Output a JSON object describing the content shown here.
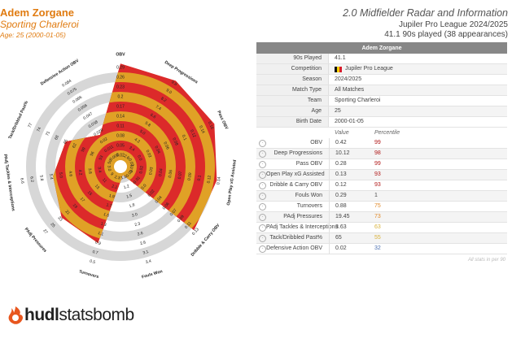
{
  "player": {
    "name": "Adem Zorgane",
    "team": "Sporting Charleroi",
    "age_line": "Age: 25 (2000-01-05)"
  },
  "header": {
    "title": "2.0 Midfielder Radar and Information",
    "league_season": "Jupiler Pro League 2024/2025",
    "minutes": "41.1 90s played (38 appearances)"
  },
  "colors": {
    "radar_orange": "#e0a126",
    "radar_red": "#dc2a2a",
    "ring_grey": "#d7d7d7",
    "accent_orange": "#e07b10",
    "pct_dark_red": "#b01818",
    "pct_orange": "#e0892a",
    "pct_yellow": "#d9b23a",
    "pct_blue": "#4a6fb0"
  },
  "table": {
    "header": "Adem Zorgane",
    "info": [
      {
        "label": "90s Played",
        "value": "41.1"
      },
      {
        "label": "Competition",
        "value": "Jupiler Pro League",
        "flag": true
      },
      {
        "label": "Season",
        "value": "2024/2025"
      },
      {
        "label": "Match Type",
        "value": "All Matches"
      },
      {
        "label": "Team",
        "value": "Sporting Charleroi"
      },
      {
        "label": "Age",
        "value": "25"
      },
      {
        "label": "Birth Date",
        "value": "2000-01-05"
      }
    ],
    "col_value": "Value",
    "col_percentile": "Percentile",
    "stats": [
      {
        "label": "OBV",
        "value": "0.42",
        "pct": "99",
        "color": "#b01818",
        "icon": "obv-icon"
      },
      {
        "label": "Deep Progressions",
        "value": "10.12",
        "pct": "98",
        "color": "#b01818",
        "icon": "deep-progressions-icon"
      },
      {
        "label": "Pass OBV",
        "value": "0.28",
        "pct": "99",
        "color": "#b01818",
        "icon": "pass-icon"
      },
      {
        "label": "Open Play xG Assisted",
        "value": "0.13",
        "pct": "93",
        "color": "#b01818",
        "icon": "xg-assisted-icon"
      },
      {
        "label": "Dribble & Carry OBV",
        "value": "0.12",
        "pct": "93",
        "color": "#b01818",
        "icon": "dribble-icon"
      },
      {
        "label": "Fouls Won",
        "value": "0.29",
        "pct": "1",
        "color": "#4a4a4a",
        "icon": "foul-icon"
      },
      {
        "label": "Turnovers",
        "value": "0.88",
        "pct": "75",
        "color": "#e0892a",
        "icon": "turnover-icon"
      },
      {
        "label": "PAdj Pressures",
        "value": "19.45",
        "pct": "73",
        "color": "#e0892a",
        "icon": "pressure-icon"
      },
      {
        "label": "PAdj Tackles & Interceptions",
        "value": "3.63",
        "pct": "63",
        "color": "#d9b23a",
        "icon": "tackle-icon"
      },
      {
        "label": "Tack/Dribbled Past%",
        "value": "65",
        "pct": "55",
        "color": "#d9b23a",
        "icon": "tackle-dribbled-icon"
      },
      {
        "label": "Defensive Action OBV",
        "value": "0.02",
        "pct": "32",
        "color": "#4a6fb0",
        "icon": "defensive-obv-icon"
      }
    ],
    "footnote": "All stats in per 90"
  },
  "radar": {
    "axes": [
      {
        "name": "OBV",
        "pct": 99,
        "ticks": [
          "0.29",
          "0.26",
          "0.23",
          "0.2",
          "0.17",
          "0.14",
          "0.11",
          "0.08",
          "0.05",
          "0.02"
        ]
      },
      {
        "name": "Deep Progressions",
        "pct": 98,
        "ticks": [
          "9.8",
          "9.0",
          "8.2",
          "7.4",
          "6.6",
          "5.8",
          "5.0",
          "4.2",
          "3.4",
          "2.6"
        ]
      },
      {
        "name": "Pass OBV",
        "pct": 99,
        "ticks": [
          "0.16",
          "0.14",
          "0.12",
          "0.1",
          "0.08",
          "0.06",
          "0.04",
          "0.02",
          "0.0",
          "-0.02"
        ]
      },
      {
        "name": "Open Play xG Assisted",
        "pct": 93,
        "ticks": [
          "0.14",
          "0.12",
          "0.1",
          "0.09",
          "0.07",
          "0.06",
          "0.04",
          "0.03",
          "0.02",
          "0.01"
        ]
      },
      {
        "name": "Dribble & Carry OBV",
        "pct": 93,
        "ticks": [
          "0.13",
          "0.11",
          "0.09",
          "0.07",
          "0.06",
          "0.04",
          "0.02",
          "0.0",
          "-0.01",
          "-0.03"
        ]
      },
      {
        "name": "Fouls Won",
        "pct": 1,
        "ticks": [
          "3.4",
          "3.1",
          "2.8",
          "2.6",
          "2.3",
          "2.0",
          "1.8",
          "1.5",
          "1.2",
          "1.0"
        ]
      },
      {
        "name": "Turnovers",
        "pct": 75,
        "ticks": [
          "0.5",
          "0.7",
          "0.9",
          "1.1",
          "1.3",
          "1.5",
          "1.7",
          "1.9",
          "2.1",
          "2.3"
        ]
      },
      {
        "name": "PAdj Pressures",
        "pct": 73,
        "ticks": [
          "27",
          "25",
          "23",
          "21",
          "19",
          "17",
          "15",
          "13",
          "11",
          "9"
        ]
      },
      {
        "name": "PAdj Tackles & Interceptions",
        "pct": 63,
        "ticks": [
          "6.6",
          "6.2",
          "5.8",
          "5.4",
          "5.0",
          "4.6",
          "4.2",
          "3.8",
          "3.4",
          "3.0"
        ]
      },
      {
        "name": "Tack/Dribbled Past%",
        "pct": 55,
        "ticks": [
          "77",
          "74",
          "71",
          "68",
          "65",
          "62",
          "59",
          "56",
          "53",
          "50"
        ]
      },
      {
        "name": "Defensive Action OBV",
        "pct": 32,
        "ticks": [
          "0.084",
          "0.075",
          "0.066",
          "0.056",
          "0.047",
          "0.038",
          "0.029",
          "0.02",
          "0.011",
          "0.002"
        ]
      }
    ]
  },
  "logo": {
    "hudl": "hudl",
    "statsbomb": "statsbomb"
  }
}
